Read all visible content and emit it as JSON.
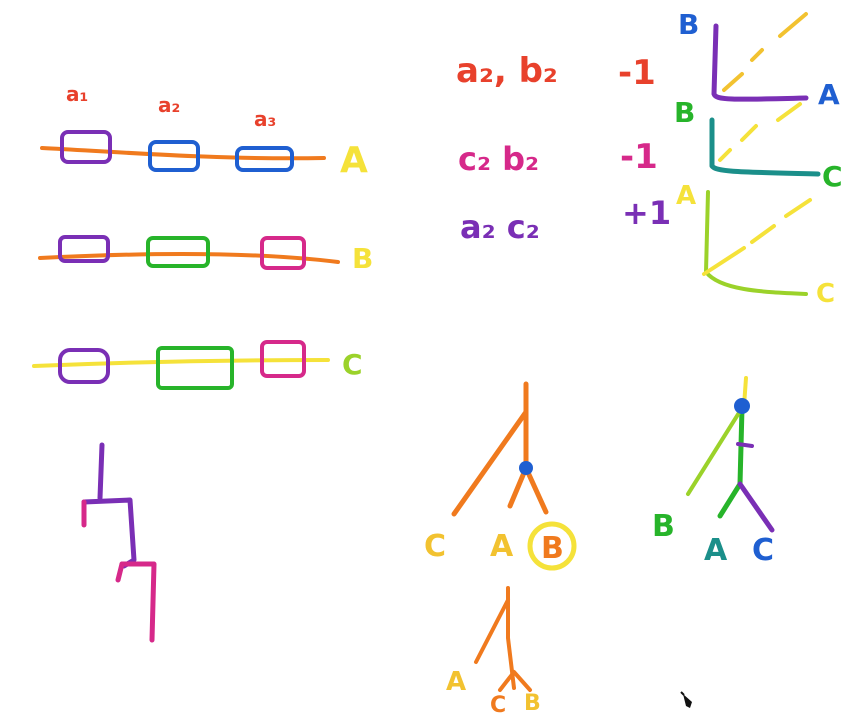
{
  "colors": {
    "orange": "#f07a1e",
    "red": "#e8412c",
    "yellow": "#f5e23a",
    "gold": "#f2c230",
    "purple": "#7a2fb5",
    "blue": "#1f5fd1",
    "green": "#27b42a",
    "lime": "#9bd22a",
    "teal": "#1b8f8a",
    "magenta": "#d6298a"
  },
  "alignment": {
    "column_labels": [
      "a₁",
      "a₂",
      "a₃"
    ],
    "sequence_labels": [
      "A",
      "B",
      "C"
    ]
  },
  "pairs": [
    {
      "pair": "a₂, b₂",
      "score": "-1"
    },
    {
      "pair": "c₂   b₂",
      "score": "-1"
    },
    {
      "pair": "a₂   c₂",
      "score": "+1"
    }
  ],
  "dotplots": [
    {
      "y_label": "B",
      "x_label": "A"
    },
    {
      "y_label": "B",
      "x_label": "C"
    },
    {
      "y_label": "A",
      "x_label": "C"
    }
  ],
  "trees": {
    "tree1_leaves": [
      "C",
      "A",
      "B"
    ],
    "tree2_leaves": [
      "B",
      "A",
      "C"
    ],
    "tree3_leaves": [
      "A",
      "C",
      "B"
    ]
  }
}
